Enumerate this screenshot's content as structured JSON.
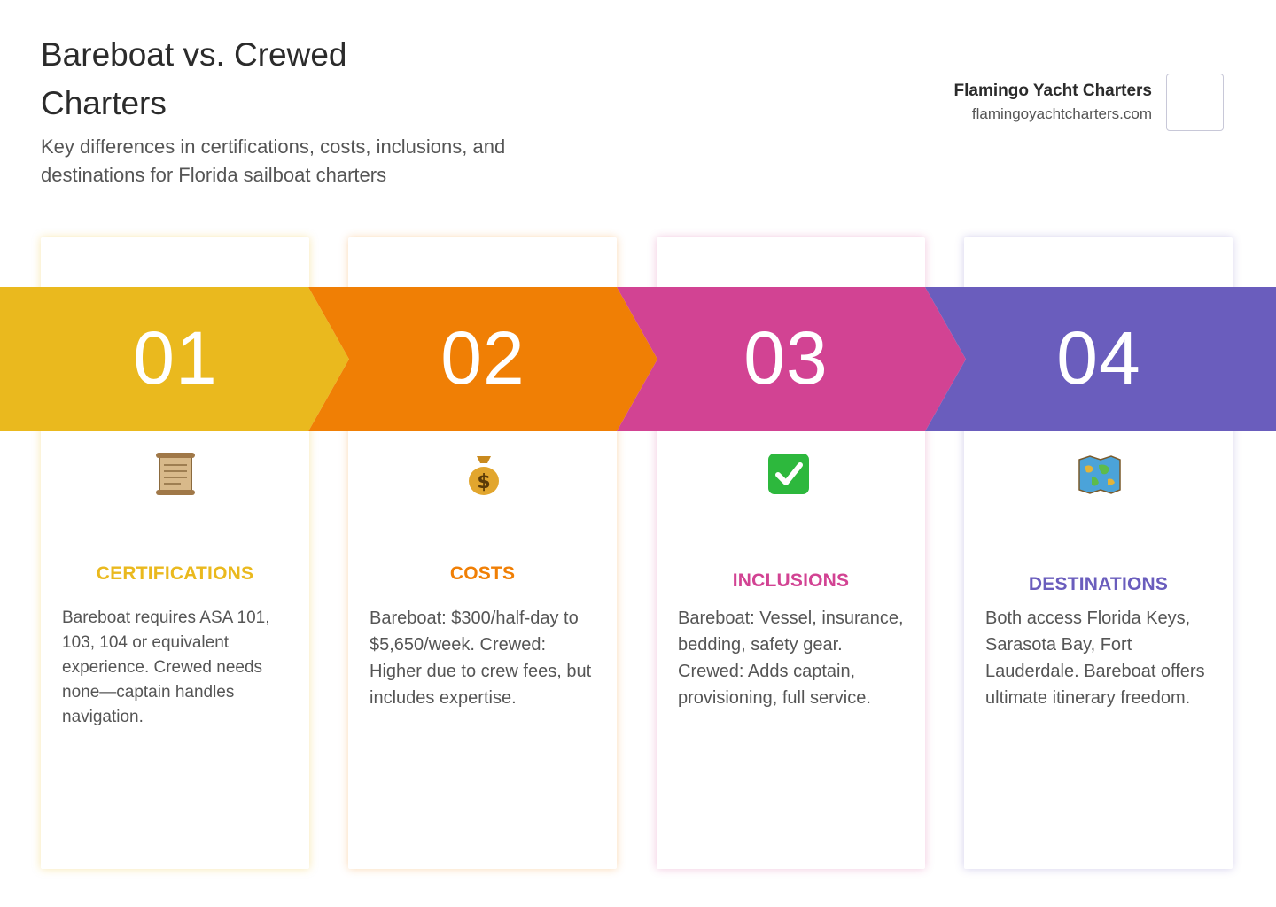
{
  "header": {
    "title": "Bareboat vs. Crewed Charters",
    "subtitle": "Key differences in certifications, costs, inclusions, and destinations for Florida sailboat charters"
  },
  "brand": {
    "name": "Flamingo Yacht Charters",
    "url": "flamingoyachtcharters.com"
  },
  "colors": {
    "yellow": "#EAB91E",
    "orange": "#F07F05",
    "pink": "#D24393",
    "purple": "#6A5DBD"
  },
  "steps": [
    {
      "number": "01",
      "icon": "scroll-icon",
      "heading": "CERTIFICATIONS",
      "text": "Bareboat requires ASA 101, 103, 104 or equivalent experience. Crewed needs none—captain handles navigation."
    },
    {
      "number": "02",
      "icon": "money-bag-icon",
      "heading": "COSTS",
      "text": "Bareboat: $300/half-day to $5,650/week. Crewed: Higher due to crew fees, but includes expertise."
    },
    {
      "number": "03",
      "icon": "check-mark-icon",
      "heading": "INCLUSIONS",
      "text": "Bareboat: Vessel, insurance, bedding, safety gear. Crewed: Adds captain, provisioning, full service."
    },
    {
      "number": "04",
      "icon": "world-map-icon",
      "heading": "DESTINATIONS",
      "text": "Both access Florida Keys, Sarasota Bay, Fort Lauderdale. Bareboat offers ultimate itinerary freedom."
    }
  ]
}
